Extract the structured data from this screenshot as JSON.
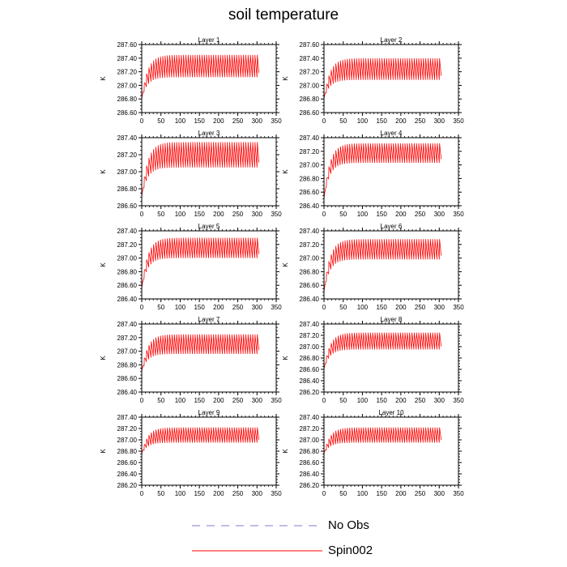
{
  "title": "soil temperature",
  "legend": [
    {
      "label": "No Obs",
      "color": "#7b7bd6",
      "dash": "dashed"
    },
    {
      "label": "Spin002",
      "color": "#ff0000",
      "dash": "solid"
    }
  ],
  "chart_data": [
    {
      "type": "line",
      "title": "Layer 1",
      "ylabel": "K",
      "xlim": [
        0,
        350
      ],
      "ylim": [
        286.6,
        287.6
      ],
      "xticks": [
        0,
        50,
        100,
        150,
        200,
        250,
        300,
        350
      ],
      "yticks": [
        "286.60",
        "286.80",
        "287.00",
        "287.20",
        "287.40",
        "287.60"
      ],
      "series": [
        {
          "name": "Spin002",
          "color": "#ff0000",
          "x_range": [
            0,
            305
          ],
          "start_y": 286.8,
          "min_y": 287.12,
          "max_y": 287.45,
          "settle_x": 15,
          "period": 6
        }
      ]
    },
    {
      "type": "line",
      "title": "Layer 2",
      "ylabel": "K",
      "xlim": [
        0,
        350
      ],
      "ylim": [
        286.6,
        287.6
      ],
      "xticks": [
        0,
        50,
        100,
        150,
        200,
        250,
        300,
        350
      ],
      "yticks": [
        "286.60",
        "286.80",
        "287.00",
        "287.20",
        "287.40",
        "287.60"
      ],
      "series": [
        {
          "name": "Spin002",
          "color": "#ff0000",
          "x_range": [
            0,
            305
          ],
          "start_y": 286.8,
          "min_y": 287.08,
          "max_y": 287.4,
          "settle_x": 15,
          "period": 6
        }
      ]
    },
    {
      "type": "line",
      "title": "Layer 3",
      "ylabel": "K",
      "xlim": [
        0,
        350
      ],
      "ylim": [
        286.6,
        287.4
      ],
      "xticks": [
        0,
        50,
        100,
        150,
        200,
        250,
        300,
        350
      ],
      "yticks": [
        "286.60",
        "286.80",
        "287.00",
        "287.20",
        "287.40"
      ],
      "series": [
        {
          "name": "Spin002",
          "color": "#ff0000",
          "x_range": [
            0,
            305
          ],
          "start_y": 286.7,
          "min_y": 287.05,
          "max_y": 287.35,
          "settle_x": 15,
          "period": 6
        }
      ]
    },
    {
      "type": "line",
      "title": "Layer 4",
      "ylabel": "K",
      "xlim": [
        0,
        350
      ],
      "ylim": [
        286.4,
        287.4
      ],
      "xticks": [
        0,
        50,
        100,
        150,
        200,
        250,
        300,
        350
      ],
      "yticks": [
        "286.40",
        "286.60",
        "286.80",
        "287.00",
        "287.20",
        "287.40"
      ],
      "series": [
        {
          "name": "Spin002",
          "color": "#ff0000",
          "x_range": [
            0,
            305
          ],
          "start_y": 286.5,
          "min_y": 287.03,
          "max_y": 287.32,
          "settle_x": 15,
          "period": 6
        }
      ]
    },
    {
      "type": "line",
      "title": "Layer 5",
      "ylabel": "K",
      "xlim": [
        0,
        350
      ],
      "ylim": [
        286.4,
        287.4
      ],
      "xticks": [
        0,
        50,
        100,
        150,
        200,
        250,
        300,
        350
      ],
      "yticks": [
        "286.40",
        "286.60",
        "286.80",
        "287.00",
        "287.20",
        "287.40"
      ],
      "series": [
        {
          "name": "Spin002",
          "color": "#ff0000",
          "x_range": [
            0,
            305
          ],
          "start_y": 286.55,
          "min_y": 287.0,
          "max_y": 287.3,
          "settle_x": 15,
          "period": 6
        }
      ]
    },
    {
      "type": "line",
      "title": "Layer 6",
      "ylabel": "K",
      "xlim": [
        0,
        350
      ],
      "ylim": [
        286.4,
        287.4
      ],
      "xticks": [
        0,
        50,
        100,
        150,
        200,
        250,
        300,
        350
      ],
      "yticks": [
        "286.40",
        "286.60",
        "286.80",
        "287.00",
        "287.20",
        "287.40"
      ],
      "series": [
        {
          "name": "Spin002",
          "color": "#ff0000",
          "x_range": [
            0,
            305
          ],
          "start_y": 286.5,
          "min_y": 286.98,
          "max_y": 287.28,
          "settle_x": 15,
          "period": 6
        }
      ]
    },
    {
      "type": "line",
      "title": "Layer 7",
      "ylabel": "K",
      "xlim": [
        0,
        350
      ],
      "ylim": [
        286.4,
        287.4
      ],
      "xticks": [
        0,
        50,
        100,
        150,
        200,
        250,
        300,
        350
      ],
      "yticks": [
        "286.40",
        "286.60",
        "286.80",
        "287.00",
        "287.20",
        "287.40"
      ],
      "series": [
        {
          "name": "Spin002",
          "color": "#ff0000",
          "x_range": [
            0,
            305
          ],
          "start_y": 286.7,
          "min_y": 286.96,
          "max_y": 287.25,
          "settle_x": 15,
          "period": 6
        }
      ]
    },
    {
      "type": "line",
      "title": "Layer 8",
      "ylabel": "K",
      "xlim": [
        0,
        350
      ],
      "ylim": [
        286.2,
        287.4
      ],
      "xticks": [
        0,
        50,
        100,
        150,
        200,
        250,
        300,
        350
      ],
      "yticks": [
        "286.20",
        "286.40",
        "286.60",
        "286.80",
        "287.00",
        "287.20",
        "287.40"
      ],
      "series": [
        {
          "name": "Spin002",
          "color": "#ff0000",
          "x_range": [
            0,
            305
          ],
          "start_y": 286.6,
          "min_y": 286.95,
          "max_y": 287.25,
          "settle_x": 15,
          "period": 6
        }
      ]
    },
    {
      "type": "line",
      "title": "Layer 9",
      "ylabel": "K",
      "xlim": [
        0,
        350
      ],
      "ylim": [
        286.2,
        287.4
      ],
      "xticks": [
        0,
        50,
        100,
        150,
        200,
        250,
        300,
        350
      ],
      "yticks": [
        "286.20",
        "286.40",
        "286.60",
        "286.80",
        "287.00",
        "287.20",
        "287.40"
      ],
      "series": [
        {
          "name": "Spin002",
          "color": "#ff0000",
          "x_range": [
            0,
            305
          ],
          "start_y": 286.75,
          "min_y": 286.95,
          "max_y": 287.22,
          "settle_x": 15,
          "period": 6
        }
      ]
    },
    {
      "type": "line",
      "title": "Layer 10",
      "ylabel": "K",
      "xlim": [
        0,
        350
      ],
      "ylim": [
        286.2,
        287.4
      ],
      "xticks": [
        0,
        50,
        100,
        150,
        200,
        250,
        300,
        350
      ],
      "yticks": [
        "286.20",
        "286.40",
        "286.60",
        "286.80",
        "287.00",
        "287.20",
        "287.40"
      ],
      "series": [
        {
          "name": "Spin002",
          "color": "#ff0000",
          "x_range": [
            0,
            305
          ],
          "start_y": 286.75,
          "min_y": 286.95,
          "max_y": 287.22,
          "settle_x": 15,
          "period": 6
        }
      ]
    }
  ]
}
